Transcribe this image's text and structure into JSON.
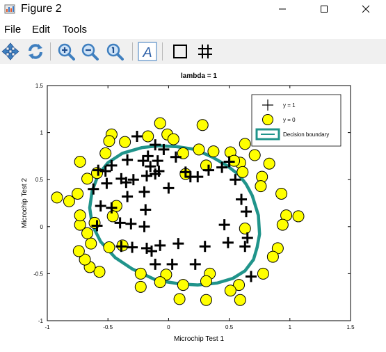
{
  "window": {
    "title": "Figure 2"
  },
  "menu": {
    "file": "File",
    "edit": "Edit",
    "tools": "Tools"
  },
  "toolbar": {
    "icons": [
      "pan-icon",
      "rotate-icon",
      "zoom-in-icon",
      "zoom-out-icon",
      "zoom-reset-icon",
      "text-icon",
      "box-icon",
      "grid-icon"
    ],
    "text_glyph": "A"
  },
  "chart_data": {
    "type": "scatter",
    "title": "lambda = 1",
    "xlabel": "Microchip Test 1",
    "ylabel": "Microchip Test 2",
    "xlim": [
      -1,
      1.5
    ],
    "ylim": [
      -1,
      1.5
    ],
    "xticks": [
      -1,
      -0.5,
      0,
      0.5,
      1,
      1.5
    ],
    "yticks": [
      -1,
      -0.5,
      0,
      0.5,
      1,
      1.5
    ],
    "xtick_labels": [
      "-1",
      "-0.5",
      "0",
      "0.5",
      "1",
      "1.5"
    ],
    "ytick_labels": [
      "-1",
      "-0.5",
      "0",
      "0.5",
      "1",
      "1.5"
    ],
    "grid": false,
    "legend_position": "top-right",
    "series": [
      {
        "name": "y = 1",
        "marker": "plus",
        "color": "#000000",
        "points": [
          [
            -0.26,
            0.96
          ],
          [
            -0.11,
            0.87
          ],
          [
            -0.04,
            0.82
          ],
          [
            -0.17,
            0.75
          ],
          [
            -0.21,
            0.7
          ],
          [
            -0.09,
            0.7
          ],
          [
            -0.15,
            0.64
          ],
          [
            0.06,
            0.74
          ],
          [
            -0.34,
            0.71
          ],
          [
            -0.47,
            0.65
          ],
          [
            -0.58,
            0.6
          ],
          [
            -0.39,
            0.51
          ],
          [
            -0.51,
            0.46
          ],
          [
            -0.62,
            0.4
          ],
          [
            -0.56,
            0.22
          ],
          [
            -0.47,
            0.2
          ],
          [
            -0.35,
            0.47
          ],
          [
            -0.29,
            0.5
          ],
          [
            -0.18,
            0.54
          ],
          [
            -0.11,
            0.56
          ],
          [
            -0.2,
            0.37
          ],
          [
            -0.34,
            0.32
          ],
          [
            -0.19,
            0.18
          ],
          [
            -0.4,
            0.04
          ],
          [
            -0.31,
            0.03
          ],
          [
            -0.2,
            0.0
          ],
          [
            -0.59,
            0.01
          ],
          [
            -0.39,
            -0.21
          ],
          [
            -0.3,
            -0.22
          ],
          [
            -0.18,
            -0.23
          ],
          [
            -0.07,
            -0.2
          ],
          [
            -0.14,
            -0.26
          ],
          [
            0.0,
            0.41
          ],
          [
            0.14,
            0.58
          ],
          [
            0.18,
            0.53
          ],
          [
            0.24,
            0.53
          ],
          [
            0.33,
            0.6
          ],
          [
            0.44,
            0.63
          ],
          [
            0.5,
            0.69
          ],
          [
            0.55,
            0.5
          ],
          [
            0.6,
            0.29
          ],
          [
            0.64,
            0.16
          ],
          [
            0.46,
            0.02
          ],
          [
            0.49,
            -0.17
          ],
          [
            0.65,
            -0.12
          ],
          [
            0.63,
            -0.21
          ],
          [
            0.3,
            -0.21
          ],
          [
            0.08,
            -0.18
          ],
          [
            0.22,
            -0.4
          ],
          [
            0.03,
            -0.4
          ],
          [
            -0.11,
            -0.4
          ],
          [
            0.68,
            -0.53
          ],
          [
            -0.52,
            0.59
          ],
          [
            -0.08,
            0.59
          ]
        ]
      },
      {
        "name": "y = 0",
        "marker": "circle",
        "color": "#ffff00",
        "points": [
          [
            -0.47,
            0.98
          ],
          [
            -0.36,
            0.9
          ],
          [
            -0.49,
            0.91
          ],
          [
            -0.07,
            1.1
          ],
          [
            -0.17,
            0.96
          ],
          [
            -0.01,
            0.98
          ],
          [
            0.28,
            1.08
          ],
          [
            0.04,
            0.93
          ],
          [
            0.12,
            0.78
          ],
          [
            0.25,
            0.82
          ],
          [
            0.37,
            0.8
          ],
          [
            0.51,
            0.79
          ],
          [
            0.63,
            0.88
          ],
          [
            0.71,
            0.76
          ],
          [
            0.59,
            0.68
          ],
          [
            0.83,
            0.67
          ],
          [
            0.61,
            0.58
          ],
          [
            0.77,
            0.53
          ],
          [
            0.76,
            0.43
          ],
          [
            0.93,
            0.35
          ],
          [
            0.97,
            0.12
          ],
          [
            1.07,
            0.11
          ],
          [
            0.94,
            0.02
          ],
          [
            0.63,
            -0.02
          ],
          [
            0.9,
            -0.23
          ],
          [
            0.86,
            -0.32
          ],
          [
            0.78,
            -0.5
          ],
          [
            0.58,
            -0.62
          ],
          [
            0.51,
            -0.68
          ],
          [
            0.34,
            -0.5
          ],
          [
            0.31,
            -0.58
          ],
          [
            -0.02,
            -0.51
          ],
          [
            -0.07,
            -0.59
          ],
          [
            0.12,
            -0.62
          ],
          [
            -0.23,
            -0.64
          ],
          [
            -0.23,
            -0.5
          ],
          [
            0.09,
            -0.77
          ],
          [
            0.31,
            -0.78
          ],
          [
            0.59,
            -0.78
          ],
          [
            -0.38,
            -0.2
          ],
          [
            -0.49,
            -0.22
          ],
          [
            -0.57,
            -0.48
          ],
          [
            -0.65,
            -0.43
          ],
          [
            -0.69,
            -0.35
          ],
          [
            -0.74,
            -0.26
          ],
          [
            -0.64,
            -0.18
          ],
          [
            -0.67,
            -0.07
          ],
          [
            -0.73,
            0.02
          ],
          [
            -0.73,
            0.12
          ],
          [
            -0.82,
            0.27
          ],
          [
            -0.92,
            0.31
          ],
          [
            -0.75,
            0.35
          ],
          [
            -0.67,
            0.51
          ],
          [
            -0.59,
            0.57
          ],
          [
            -0.73,
            0.69
          ],
          [
            -0.52,
            0.78
          ],
          [
            -0.43,
            0.22
          ],
          [
            -0.46,
            0.11
          ],
          [
            0.31,
            0.65
          ],
          [
            0.14,
            0.56
          ],
          [
            0.54,
            0.7
          ],
          [
            -0.61,
            0.04
          ]
        ]
      }
    ],
    "decision_boundary": {
      "name": "Decision boundary",
      "color": "#20948b",
      "points": [
        [
          0.07,
          0.85
        ],
        [
          0.22,
          0.82
        ],
        [
          0.36,
          0.74
        ],
        [
          0.48,
          0.65
        ],
        [
          0.58,
          0.55
        ],
        [
          0.64,
          0.45
        ],
        [
          0.69,
          0.33
        ],
        [
          0.74,
          0.12
        ],
        [
          0.75,
          -0.08
        ],
        [
          0.73,
          -0.22
        ],
        [
          0.7,
          -0.35
        ],
        [
          0.63,
          -0.47
        ],
        [
          0.53,
          -0.55
        ],
        [
          0.4,
          -0.6
        ],
        [
          0.24,
          -0.62
        ],
        [
          0.1,
          -0.61
        ],
        [
          -0.1,
          -0.57
        ],
        [
          -0.3,
          -0.45
        ],
        [
          -0.44,
          -0.33
        ],
        [
          -0.56,
          -0.16
        ],
        [
          -0.63,
          0.02
        ],
        [
          -0.65,
          0.2
        ],
        [
          -0.63,
          0.38
        ],
        [
          -0.58,
          0.55
        ],
        [
          -0.5,
          0.68
        ],
        [
          -0.38,
          0.78
        ],
        [
          -0.22,
          0.84
        ],
        [
          -0.08,
          0.86
        ],
        [
          0.07,
          0.85
        ]
      ]
    },
    "legend": [
      "y = 1",
      "y = 0",
      "Decision boundary"
    ]
  }
}
